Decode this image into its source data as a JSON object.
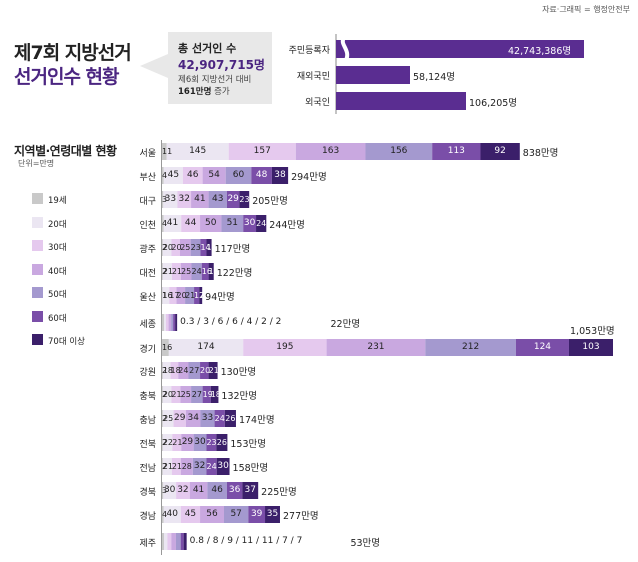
{
  "source": "자료·그래픽 = 행정안전부",
  "title_line1": "제7회 지방선거",
  "title_line2": "선거인수 현황",
  "summary": {
    "total_label": "총 선거인 수",
    "total_value": "42,907,715명",
    "compare_line1": "제6회 지방선거 대비",
    "compare_bold": "161만명",
    "compare_suffix": " 증가"
  },
  "colors": {
    "top_bar": "#5a2d91",
    "age": [
      "#c9c9c9",
      "#ebe6f2",
      "#e5c9ee",
      "#c9a8e0",
      "#a499cf",
      "#7a4ea8",
      "#3b1f6a"
    ]
  },
  "section": {
    "title": "지역별·연령대별 현황",
    "unit": "단위=만명"
  },
  "legend": [
    "19세",
    "20대",
    "30대",
    "40대",
    "50대",
    "60대",
    "70대 이상"
  ],
  "chart_data": [
    {
      "type": "bar",
      "categories": [
        "주민등록자",
        "재외국민",
        "외국인"
      ],
      "values": [
        42743386,
        58124,
        106205
      ],
      "labels": [
        "42,743,386명",
        "58,124명",
        "106,205명"
      ]
    },
    {
      "type": "bar",
      "stacked": true,
      "orientation": "horizontal",
      "categories": [
        "서울",
        "부산",
        "대구",
        "인천",
        "광주",
        "대전",
        "울산",
        "세종",
        "경기",
        "강원",
        "충북",
        "충남",
        "전북",
        "전남",
        "경북",
        "경남",
        "제주"
      ],
      "series": [
        {
          "name": "19세",
          "values": [
            11,
            4,
            3,
            4,
            2,
            2,
            1,
            0.3,
            16,
            2,
            2,
            2,
            2,
            2,
            3,
            4,
            0.8
          ]
        },
        {
          "name": "20대",
          "values": [
            145,
            45,
            33,
            41,
            20,
            21,
            16,
            3,
            174,
            18,
            20,
            25,
            22,
            21,
            30,
            40,
            8
          ]
        },
        {
          "name": "30대",
          "values": [
            157,
            46,
            32,
            44,
            20,
            21,
            17,
            6,
            195,
            18,
            21,
            29,
            21,
            21,
            32,
            45,
            9
          ]
        },
        {
          "name": "40대",
          "values": [
            163,
            54,
            41,
            50,
            25,
            25,
            20,
            6,
            231,
            24,
            25,
            34,
            29,
            28,
            41,
            56,
            11
          ]
        },
        {
          "name": "50대",
          "values": [
            156,
            60,
            43,
            51,
            23,
            24,
            21,
            4,
            212,
            27,
            27,
            33,
            30,
            32,
            46,
            57,
            11
          ]
        },
        {
          "name": "60대",
          "values": [
            113,
            48,
            29,
            30,
            14,
            16,
            12,
            2,
            124,
            20,
            19,
            24,
            23,
            24,
            36,
            39,
            7
          ]
        },
        {
          "name": "70대 이상",
          "values": [
            92,
            38,
            23,
            24,
            12,
            12,
            7,
            2,
            103,
            21,
            18,
            26,
            26,
            30,
            37,
            35,
            7
          ]
        }
      ],
      "totals": [
        "838만명",
        "294만명",
        "205만명",
        "244만명",
        "117만명",
        "122만명",
        "94만명",
        "22만명",
        "1,053만명",
        "130만명",
        "132만명",
        "174만명",
        "153만명",
        "158만명",
        "225만명",
        "277만명",
        "53만명"
      ],
      "value_labels": [
        [
          "11",
          "145",
          "157",
          "163",
          "156",
          "113",
          "92"
        ],
        [
          "4",
          "45",
          "46",
          "54",
          "60",
          "48",
          "38"
        ],
        [
          "3",
          "33",
          "32",
          "41",
          "43",
          "29",
          "23"
        ],
        [
          "4",
          "41",
          "44",
          "50",
          "51",
          "30",
          "24"
        ],
        [
          "2",
          "20",
          "20",
          "25",
          "23",
          "14",
          "12"
        ],
        [
          "2",
          "21",
          "21",
          "25",
          "24",
          "16",
          "12"
        ],
        [
          "1",
          "16",
          "17",
          "20",
          "21",
          "12",
          "7"
        ],
        [
          "0.3",
          "3",
          "6",
          "6",
          "4",
          "2",
          "2"
        ],
        [
          "16",
          "174",
          "195",
          "231",
          "212",
          "124",
          "103"
        ],
        [
          "2",
          "18",
          "18",
          "24",
          "27",
          "20",
          "21"
        ],
        [
          "2",
          "20",
          "21",
          "25",
          "27",
          "19",
          "18"
        ],
        [
          "2",
          "25",
          "29",
          "34",
          "33",
          "24",
          "26"
        ],
        [
          "2",
          "22",
          "21",
          "29",
          "30",
          "23",
          "26"
        ],
        [
          "2",
          "21",
          "21",
          "28",
          "32",
          "24",
          "30"
        ],
        [
          "3",
          "30",
          "32",
          "41",
          "46",
          "36",
          "37"
        ],
        [
          "4",
          "40",
          "45",
          "56",
          "57",
          "39",
          "35"
        ],
        [
          "0.8",
          "8",
          "9",
          "11",
          "11",
          "7",
          "7"
        ]
      ],
      "inline_labels": {
        "세종": "0.3 / 3 / 6 / 6 / 4 / 2 / 2",
        "제주": "0.8 / 8 / 9 / 11 / 11 / 7 / 7"
      }
    }
  ]
}
